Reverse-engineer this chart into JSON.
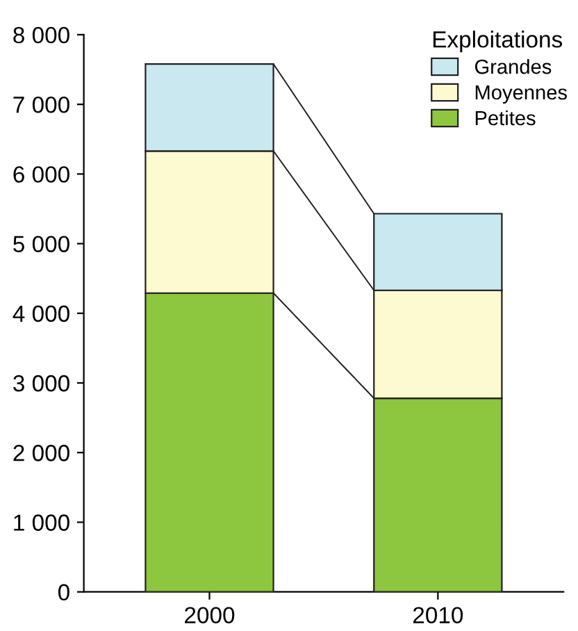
{
  "chart_data": {
    "type": "bar",
    "stacked": true,
    "categories": [
      "2000",
      "2010"
    ],
    "series": [
      {
        "name": "Petites",
        "color": "#8dc63f",
        "values": [
          4290,
          2780
        ]
      },
      {
        "name": "Moyennes",
        "color": "#fdf9d0",
        "values": [
          2040,
          1550
        ]
      },
      {
        "name": "Grandes",
        "color": "#c9e8f0",
        "values": [
          1250,
          1100
        ]
      }
    ],
    "legend_title": "Exploitations",
    "legend": "top right",
    "grid": false,
    "ylim": [
      0,
      8000
    ],
    "yticks": [
      {
        "value": 0,
        "label": "0"
      },
      {
        "value": 1000,
        "label": "1 000"
      },
      {
        "value": 2000,
        "label": "2 000"
      },
      {
        "value": 3000,
        "label": "3 000"
      },
      {
        "value": 4000,
        "label": "4 000"
      },
      {
        "value": 5000,
        "label": "5 000"
      },
      {
        "value": 6000,
        "label": "6 000"
      },
      {
        "value": 7000,
        "label": "7 000"
      },
      {
        "value": 8000,
        "label": "8 000"
      }
    ]
  }
}
